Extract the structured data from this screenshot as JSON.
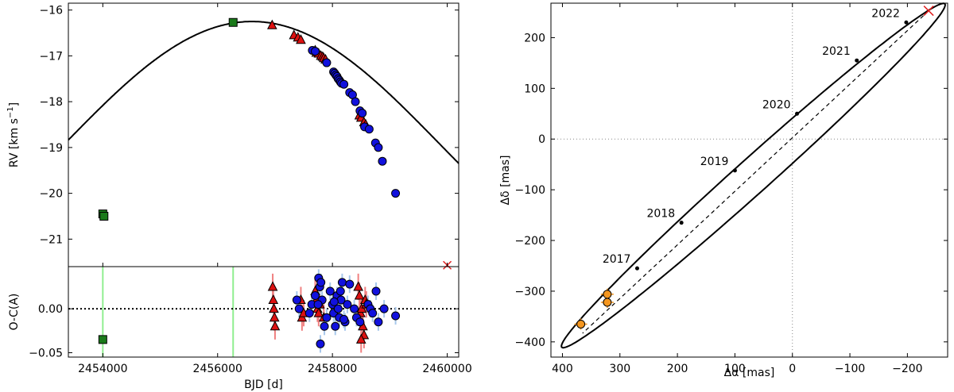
{
  "chart_data": [
    {
      "panel": "rv-top",
      "type": "scatter",
      "ylabel_main": "RV [km s",
      "ylabel_sup": "−1",
      "ylabel_close": "]",
      "ylim": [
        -21.6,
        -15.85
      ],
      "xlim": [
        2453400,
        2460200
      ],
      "yticks": [
        -16,
        -17,
        -18,
        -19,
        -20,
        -21
      ],
      "ytick_labels": [
        "−16",
        "−17",
        "−18",
        "−19",
        "−20",
        "−21"
      ],
      "model_curve": {
        "period_days": 13000,
        "peak_jd": 2456600,
        "k": 2.65,
        "offset": -18.9,
        "name": "Keplerian fit"
      },
      "series": [
        {
          "name": "squares",
          "marker": "square",
          "color": "#1a7a1a",
          "x": [
            2454000,
            2454020,
            2456270
          ],
          "y": [
            -20.45,
            -20.5,
            -16.27
          ]
        },
        {
          "name": "triangles",
          "marker": "triangle",
          "color": "#dd1111",
          "x": [
            2456950,
            2457330,
            2457400,
            2457450,
            2457700,
            2457720,
            2457760,
            2457800,
            2457830,
            2457850,
            2457880,
            2458470,
            2458500,
            2458550,
            2458580
          ],
          "y": [
            -16.33,
            -16.55,
            -16.6,
            -16.65,
            -16.88,
            -16.93,
            -16.95,
            -17.0,
            -17.02,
            -17.05,
            -17.08,
            -18.3,
            -18.35,
            -18.45,
            -18.5
          ]
        },
        {
          "name": "circles",
          "marker": "circle",
          "color": "#1111dd",
          "x": [
            2457650,
            2457700,
            2457900,
            2458020,
            2458040,
            2458060,
            2458080,
            2458100,
            2458120,
            2458140,
            2458160,
            2458200,
            2458300,
            2458350,
            2458400,
            2458480,
            2458520,
            2458560,
            2458640,
            2458750,
            2458800,
            2458870,
            2459100
          ],
          "y": [
            -16.88,
            -16.9,
            -17.15,
            -17.35,
            -17.38,
            -17.42,
            -17.45,
            -17.5,
            -17.53,
            -17.57,
            -17.6,
            -17.62,
            -17.8,
            -17.85,
            -18.0,
            -18.2,
            -18.25,
            -18.55,
            -18.6,
            -18.9,
            -19.0,
            -19.3,
            -20.0
          ]
        }
      ],
      "maximum_marker": {
        "x": 2460000,
        "y": -21.57,
        "label": "×"
      }
    },
    {
      "panel": "oc-bottom",
      "type": "scatter",
      "ylabel": "O-C(A)",
      "xlabel": "BJD [d]",
      "xlim": [
        2453400,
        2460200
      ],
      "ylim": [
        -0.055,
        0.048
      ],
      "xticks": [
        2454000,
        2456000,
        2458000,
        2460000
      ],
      "xtick_labels": [
        "2454000",
        "2456000",
        "2458000",
        "2460000"
      ],
      "yticks": [
        0.0,
        -0.05
      ],
      "ytick_labels": [
        "0.00",
        "−0.05"
      ],
      "green_lines_x": [
        2454000,
        2456270
      ],
      "series": [
        {
          "name": "squares",
          "marker": "square",
          "color": "#1a7a1a",
          "x": [
            2454000
          ],
          "y": [
            -0.035
          ],
          "err": [
            0.004
          ]
        },
        {
          "name": "triangles",
          "marker": "triangle",
          "color": "#dd1111",
          "x": [
            2456960,
            2456970,
            2456980,
            2456990,
            2457000,
            2457450,
            2457470,
            2457500,
            2457700,
            2457720,
            2457740,
            2457760,
            2457780,
            2457850,
            2458450,
            2458470,
            2458490,
            2458510,
            2458530,
            2458550,
            2458570,
            2458590,
            2458500
          ],
          "y": [
            0.025,
            0.01,
            0.0,
            -0.01,
            -0.02,
            0.01,
            -0.01,
            -0.005,
            0.02,
            0.01,
            0.0,
            -0.005,
            0.005,
            -0.01,
            0.025,
            0.015,
            -0.005,
            0.0,
            -0.02,
            -0.03,
            0.01,
            0.005,
            -0.035
          ],
          "err": [
            0.015,
            0.015,
            0.015,
            0.015,
            0.015,
            0.015,
            0.015,
            0.015,
            0.015,
            0.015,
            0.015,
            0.015,
            0.015,
            0.015,
            0.015,
            0.015,
            0.015,
            0.015,
            0.015,
            0.015,
            0.015,
            0.015,
            0.015
          ]
        },
        {
          "name": "circles",
          "marker": "circle",
          "color": "#1111dd",
          "x": [
            2457380,
            2457420,
            2457600,
            2457640,
            2457700,
            2457760,
            2457780,
            2457800,
            2457820,
            2457860,
            2457900,
            2457960,
            2458000,
            2458020,
            2458050,
            2458080,
            2458100,
            2458120,
            2458140,
            2458170,
            2458220,
            2458260,
            2458300,
            2458380,
            2458420,
            2458480,
            2458620,
            2458660,
            2458700,
            2458760,
            2458800,
            2458900,
            2459100,
            2457750,
            2457790,
            2458200,
            2458150,
            2458030
          ],
          "y": [
            0.01,
            0.0,
            -0.005,
            0.005,
            0.015,
            0.035,
            0.025,
            0.03,
            0.01,
            -0.02,
            -0.01,
            0.02,
            0.005,
            -0.005,
            -0.02,
            0.015,
            0.0,
            -0.01,
            0.02,
            0.03,
            -0.015,
            0.005,
            0.028,
            0.0,
            -0.01,
            -0.015,
            0.005,
            0.0,
            -0.005,
            0.02,
            -0.015,
            0.0,
            -0.008,
            0.005,
            -0.04,
            -0.012,
            0.01,
            0.008
          ],
          "err": [
            0.01,
            0.01,
            0.01,
            0.01,
            0.01,
            0.01,
            0.01,
            0.01,
            0.01,
            0.01,
            0.01,
            0.01,
            0.01,
            0.01,
            0.01,
            0.01,
            0.01,
            0.01,
            0.01,
            0.01,
            0.01,
            0.01,
            0.01,
            0.01,
            0.01,
            0.01,
            0.01,
            0.01,
            0.01,
            0.01,
            0.01,
            0.01,
            0.01,
            0.01,
            0.01,
            0.01,
            0.01,
            0.01
          ]
        }
      ]
    },
    {
      "panel": "astrometry",
      "type": "scatter",
      "xlabel": "Δα [mas]",
      "ylabel": "Δδ [mas]",
      "xlim": [
        420,
        -270
      ],
      "ylim": [
        -430,
        268
      ],
      "xticks": [
        400,
        300,
        200,
        100,
        0,
        -100,
        -200
      ],
      "xtick_labels": [
        "400",
        "300",
        "200",
        "100",
        "0",
        "−100",
        "−200"
      ],
      "yticks": [
        200,
        100,
        0,
        -100,
        -200,
        -300,
        -400
      ],
      "ytick_labels": [
        "200",
        "100",
        "0",
        "−100",
        "−200",
        "−300",
        "−400"
      ],
      "orbit": {
        "a_major": 475,
        "b_minor": 32,
        "center_x": 68,
        "center_y": -72,
        "angle_deg": 45.5
      },
      "line_of_nodes": {
        "x": [
          -237,
          365
        ],
        "y": [
          253,
          -383
        ]
      },
      "epochs": [
        {
          "label": "2017",
          "x": 270,
          "y": -255
        },
        {
          "label": "2018",
          "x": 193,
          "y": -165
        },
        {
          "label": "2019",
          "x": 100,
          "y": -62
        },
        {
          "label": "2020",
          "x": -8,
          "y": 50
        },
        {
          "label": "2021",
          "x": -112,
          "y": 155
        },
        {
          "label": "2022",
          "x": -198,
          "y": 230
        }
      ],
      "periastron_marker": {
        "x": -237,
        "y": 253,
        "label": "×"
      },
      "observations": {
        "color": "#f5961e",
        "x": [
          368,
          322,
          322
        ],
        "y": [
          -365,
          -306,
          -322
        ]
      }
    }
  ]
}
